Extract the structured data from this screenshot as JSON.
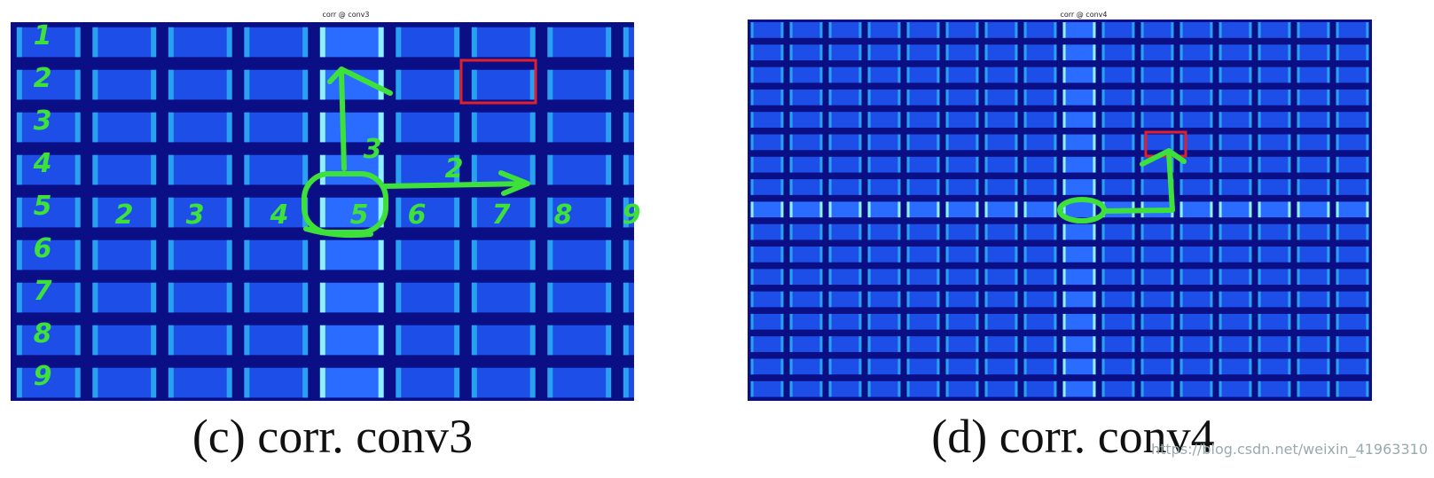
{
  "panels": [
    {
      "title": "corr @ conv3",
      "caption": "(c)  corr. conv3",
      "row_labels": [
        "1",
        "2",
        "3",
        "4",
        "5",
        "6",
        "7",
        "8",
        "9"
      ],
      "col_labels": [
        "2",
        "3",
        "4",
        "5",
        "6",
        "7",
        "8",
        "9"
      ],
      "step_labels": [
        "3",
        "2"
      ]
    },
    {
      "title": "corr @ conv4",
      "caption": "(d)  corr. conv4"
    }
  ],
  "watermark": "https://blog.csdn.net/weixin_41963310"
}
